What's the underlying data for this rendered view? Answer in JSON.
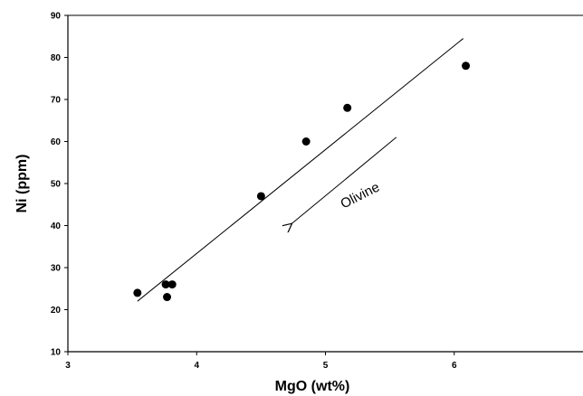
{
  "chart_data": {
    "type": "scatter",
    "xlabel": "MgO (wt%)",
    "ylabel": "Ni (ppm)",
    "xlim": [
      3,
      7
    ],
    "ylim": [
      10,
      90
    ],
    "xticks": [
      3,
      4,
      5,
      6
    ],
    "yticks": [
      10,
      20,
      30,
      40,
      50,
      60,
      70,
      80,
      90
    ],
    "x_tick_labels": [
      "3",
      "4",
      "5",
      "6"
    ],
    "y_tick_labels": [
      "10",
      "20",
      "30",
      "40",
      "50",
      "60",
      "70",
      "80",
      "90"
    ],
    "grid": false,
    "legend": "none",
    "series": [
      {
        "points": [
          {
            "x": 3.54,
            "y": 24
          },
          {
            "x": 3.76,
            "y": 26
          },
          {
            "x": 3.81,
            "y": 26
          },
          {
            "x": 3.77,
            "y": 23
          },
          {
            "x": 4.5,
            "y": 47
          },
          {
            "x": 4.85,
            "y": 60
          },
          {
            "x": 5.17,
            "y": 68
          },
          {
            "x": 6.09,
            "y": 78
          }
        ]
      }
    ],
    "fit_line": {
      "x": [
        3.54,
        6.07
      ],
      "y": [
        22,
        84.5
      ]
    },
    "annotation": {
      "text": "Olivine",
      "arrow": {
        "from": {
          "x": 5.55,
          "y": 61
        },
        "to": {
          "x": 4.74,
          "y": 40.5
        }
      },
      "text_anchor": {
        "x": 5.14,
        "y": 44
      }
    },
    "colors": {
      "markers": "#000000",
      "axes": "#000000",
      "background": "#ffffff"
    }
  }
}
